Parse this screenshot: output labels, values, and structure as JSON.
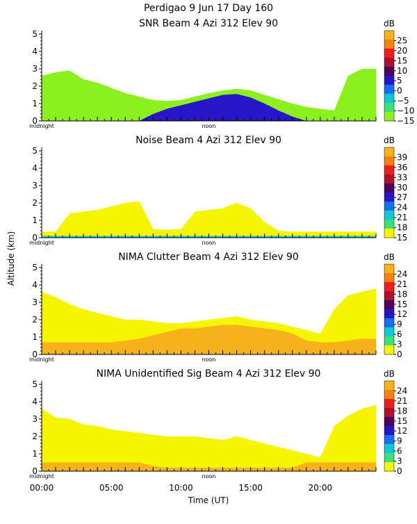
{
  "figure": {
    "header": "Perdigao    9 Jun 17 Day 160",
    "ylabel": "Altitude (km)",
    "xlabel": "Time (UT)",
    "xticks": [
      "00:00",
      "05:00",
      "10:00",
      "15:00",
      "20:00"
    ],
    "midnight_label": "midnight",
    "noon_label": "noon",
    "unit": "dB"
  },
  "chart_data": [
    {
      "type": "heatmap",
      "title": "SNR Beam 4 Azi 312 Elev 90",
      "xlim": [
        0,
        24
      ],
      "ylim": [
        0,
        5.2
      ],
      "yticks": [
        "0",
        "1",
        "2",
        "3",
        "4",
        "5"
      ],
      "colorbar": {
        "unit": "dB",
        "ticks": [
          "25",
          "20",
          "15",
          "10",
          "5",
          "0",
          "−5",
          "−10",
          "−15"
        ],
        "colors": [
          "#f7b21b",
          "#f5820f",
          "#f01e1e",
          "#b0102a",
          "#50005a",
          "#2816c8",
          "#1470f0",
          "#0fc8d2",
          "#3ae07a",
          "#8cf01e"
        ]
      },
      "fill": "field",
      "dominant_color": "#8cf01e",
      "top_km": [
        2.6,
        2.8,
        2.9,
        2.4,
        2.2,
        1.9,
        1.6,
        1.4,
        1.2,
        1.15,
        1.2,
        1.4,
        1.6,
        1.75,
        1.85,
        1.75,
        1.5,
        1.25,
        1.0,
        0.8,
        0.7,
        0.6,
        2.6,
        3.0,
        3.0
      ],
      "core_color": "#2816c8",
      "core_top_km": [
        0,
        0,
        0,
        0,
        0,
        0,
        0,
        0,
        0.4,
        0.7,
        0.9,
        1.1,
        1.3,
        1.5,
        1.55,
        1.35,
        1.0,
        0.6,
        0.25,
        0,
        0,
        0,
        0,
        0,
        0
      ]
    },
    {
      "type": "heatmap",
      "title": "Noise Beam 4 Azi 312 Elev 90",
      "xlim": [
        0,
        24
      ],
      "ylim": [
        0,
        5.2
      ],
      "yticks": [
        "0",
        "1",
        "2",
        "3",
        "4",
        "5"
      ],
      "colorbar": {
        "unit": "dB",
        "ticks": [
          "39",
          "36",
          "33",
          "30",
          "27",
          "24",
          "21",
          "18",
          "15"
        ],
        "colors": [
          "#f7b21b",
          "#f5820f",
          "#f01e1e",
          "#b0102a",
          "#50005a",
          "#2816c8",
          "#1470f0",
          "#0fc8d2",
          "#3ae07a",
          "#f5f500"
        ]
      },
      "fill": "field",
      "dominant_color": "#f5f500",
      "top_km": [
        0.35,
        0.35,
        1.4,
        1.5,
        1.6,
        1.8,
        2.0,
        2.1,
        0.5,
        0.45,
        0.5,
        1.5,
        1.6,
        1.7,
        2.0,
        1.7,
        0.9,
        0.4,
        0.35,
        0.35,
        0.35,
        0.35,
        0.35,
        0.35,
        0.35
      ],
      "core_color": "#0fc8d2",
      "core_top_km": [
        0.1,
        0.1,
        0.1,
        0.1,
        0.1,
        0.1,
        0.1,
        0.1,
        0.1,
        0.1,
        0.1,
        0.1,
        0.1,
        0.1,
        0.1,
        0.1,
        0.1,
        0.1,
        0.1,
        0.1,
        0.1,
        0.1,
        0.1,
        0.1,
        0.1
      ]
    },
    {
      "type": "heatmap",
      "title": "NIMA Clutter Beam 4 Azi 312 Elev 90",
      "xlim": [
        0,
        24
      ],
      "ylim": [
        0,
        5.2
      ],
      "yticks": [
        "0",
        "1",
        "2",
        "3",
        "4",
        "5"
      ],
      "colorbar": {
        "unit": "dB",
        "ticks": [
          "24",
          "21",
          "18",
          "15",
          "12",
          "9",
          "6",
          "3",
          "0"
        ],
        "colors": [
          "#f7b21b",
          "#f5820f",
          "#f01e1e",
          "#b0102a",
          "#50005a",
          "#2816c8",
          "#1470f0",
          "#0fc8d2",
          "#3ae07a",
          "#f5f500"
        ]
      },
      "fill": "field",
      "dominant_color": "#f5f500",
      "top_km": [
        3.6,
        3.3,
        2.9,
        2.6,
        2.4,
        2.2,
        2.0,
        2.0,
        1.9,
        1.8,
        1.8,
        1.9,
        2.0,
        2.1,
        2.2,
        2.0,
        1.9,
        1.8,
        1.6,
        1.4,
        1.2,
        2.6,
        3.4,
        3.6,
        3.8
      ],
      "core_color": "#f7b21b",
      "core_top_km": [
        0.7,
        0.7,
        0.7,
        0.7,
        0.7,
        0.7,
        0.8,
        0.9,
        1.1,
        1.3,
        1.5,
        1.5,
        1.6,
        1.7,
        1.7,
        1.6,
        1.5,
        1.4,
        1.2,
        0.8,
        0.7,
        0.7,
        0.8,
        0.9,
        0.9
      ]
    },
    {
      "type": "heatmap",
      "title": "NIMA Unidentified Sig Beam 4 Azi 312 Elev 90",
      "xlim": [
        0,
        24
      ],
      "ylim": [
        0,
        5.2
      ],
      "yticks": [
        "0",
        "1",
        "2",
        "3",
        "4",
        "5"
      ],
      "colorbar": {
        "unit": "dB",
        "ticks": [
          "24",
          "21",
          "18",
          "15",
          "12",
          "9",
          "6",
          "3",
          "0"
        ],
        "colors": [
          "#f7b21b",
          "#f5820f",
          "#f01e1e",
          "#b0102a",
          "#50005a",
          "#2816c8",
          "#1470f0",
          "#0fc8d2",
          "#3ae07a",
          "#f5f500"
        ]
      },
      "fill": "field",
      "dominant_color": "#f5f500",
      "top_km": [
        3.6,
        3.1,
        3.0,
        2.7,
        2.6,
        2.4,
        2.3,
        2.2,
        2.1,
        2.0,
        2.0,
        2.0,
        1.9,
        1.8,
        2.0,
        1.8,
        1.6,
        1.4,
        1.2,
        1.0,
        0.8,
        2.6,
        3.2,
        3.6,
        3.8
      ],
      "core_color": "#f7b21b",
      "core_top_km": [
        0.5,
        0.5,
        0.5,
        0.5,
        0.5,
        0.5,
        0.5,
        0.5,
        0.3,
        0.2,
        0.2,
        0.2,
        0.2,
        0.2,
        0.2,
        0.2,
        0.2,
        0.2,
        0.2,
        0.5,
        0.5,
        0.5,
        0.5,
        0.5,
        0.5
      ]
    }
  ]
}
